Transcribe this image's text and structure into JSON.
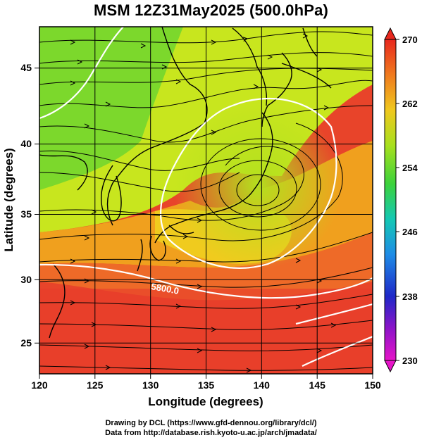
{
  "title": "MSM 12Z31May2025 (500.0hPa)",
  "axes": {
    "xlabel": "Longitude (degrees)",
    "ylabel": "Latitude  (degrees)",
    "x_ticks": [
      "120",
      "125",
      "130",
      "135",
      "140",
      "145",
      "150"
    ],
    "y_ticks": [
      "25",
      "30",
      "35",
      "40",
      "45"
    ],
    "xlim": [
      120,
      150
    ],
    "ylim": [
      22.4,
      47.6
    ]
  },
  "colorbar": {
    "ticks": [
      "230",
      "238",
      "246",
      "254",
      "262",
      "270"
    ],
    "range": [
      230,
      270
    ],
    "colors_top_to_bottom": [
      "#e8281e",
      "#f07a1e",
      "#f0c81e",
      "#a8e01e",
      "#3cd23c",
      "#14c8b4",
      "#1e8ce6",
      "#1e28c8",
      "#8c14c8",
      "#e614c8"
    ]
  },
  "contour_label": "5800.0",
  "credits": {
    "line1": "Drawing by DCL (https://www.gfd-dennou.org/library/dcl/)",
    "line2": "Data from http://database.rish.kyoto-u.ac.jp/arch/jmadata/"
  },
  "chart_data": {
    "type": "heatmap",
    "title": "MSM 12Z31May2025 (500.0hPa)",
    "xlabel": "Longitude (degrees)",
    "ylabel": "Latitude  (degrees)",
    "xlim": [
      120,
      150
    ],
    "ylim": [
      22.4,
      47.6
    ],
    "colorbar_range": [
      230,
      270
    ],
    "contour_level": 5800.0,
    "overlays": [
      "temperature shading",
      "geopotential height contours (white)",
      "streamlines",
      "coastlines",
      "5-degree grid"
    ]
  }
}
